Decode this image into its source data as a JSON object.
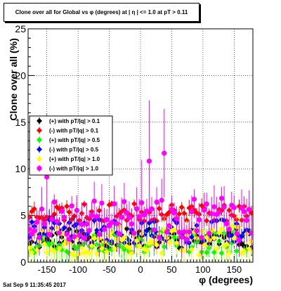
{
  "title": "Clone  over all for Global vs φ (degrees) at | η | <= 1.0 at pT > 0.11",
  "footer": "Sat Sep  9 11:35:45 2017",
  "colors": {
    "black": "#000000",
    "red": "#ff0000",
    "green": "#00ff00",
    "blue": "#0000ff",
    "yellow": "#ffff00",
    "magenta": "#ff00ff"
  },
  "chart_data": {
    "type": "scatter",
    "title": "Clone  over all for Global vs φ (degrees) at | η | <= 1.0 at pT > 0.11",
    "xlabel": "φ (degrees)",
    "ylabel": "Clone  over all (%)",
    "xlim": [
      -180,
      180
    ],
    "ylim": [
      0,
      25
    ],
    "xticks": [
      -150,
      -100,
      -50,
      0,
      50,
      100,
      150
    ],
    "yticks": [
      0,
      5,
      10,
      15,
      20,
      25
    ],
    "grid": true,
    "legend_position": "left-middle",
    "series": [
      {
        "name": "(+) with pT/|q| > 0.1",
        "color": "#000000",
        "marker": "diamond",
        "mean": 2.5,
        "noise": 0.7,
        "err": 0.7,
        "seed": 11
      },
      {
        "name": "(-) with pT/|q| > 0.1",
        "color": "#ff0000",
        "marker": "diamond",
        "mean": 5.3,
        "noise": 0.6,
        "err": 0.6,
        "seed": 23
      },
      {
        "name": "(+) with pT/|q| > 0.5",
        "color": "#00ff00",
        "marker": "diamond",
        "mean": 2.2,
        "noise": 0.8,
        "err": 0.9,
        "seed": 37
      },
      {
        "name": "(-) with pT/|q| > 0.5",
        "color": "#0000ff",
        "marker": "diamond",
        "mean": 3.3,
        "noise": 0.8,
        "err": 0.8,
        "seed": 41
      },
      {
        "name": "(+) with pT/|q| > 1.0",
        "color": "#ffff00",
        "marker": "diamond",
        "mean": 2.3,
        "noise": 1.0,
        "err": 1.1,
        "seed": 53
      },
      {
        "name": "(-) with pT/|q| > 1.0",
        "color": "#ff00ff",
        "marker": "circle",
        "mean": 4.6,
        "noise": 1.4,
        "err": 1.6,
        "seed": 67
      }
    ]
  }
}
